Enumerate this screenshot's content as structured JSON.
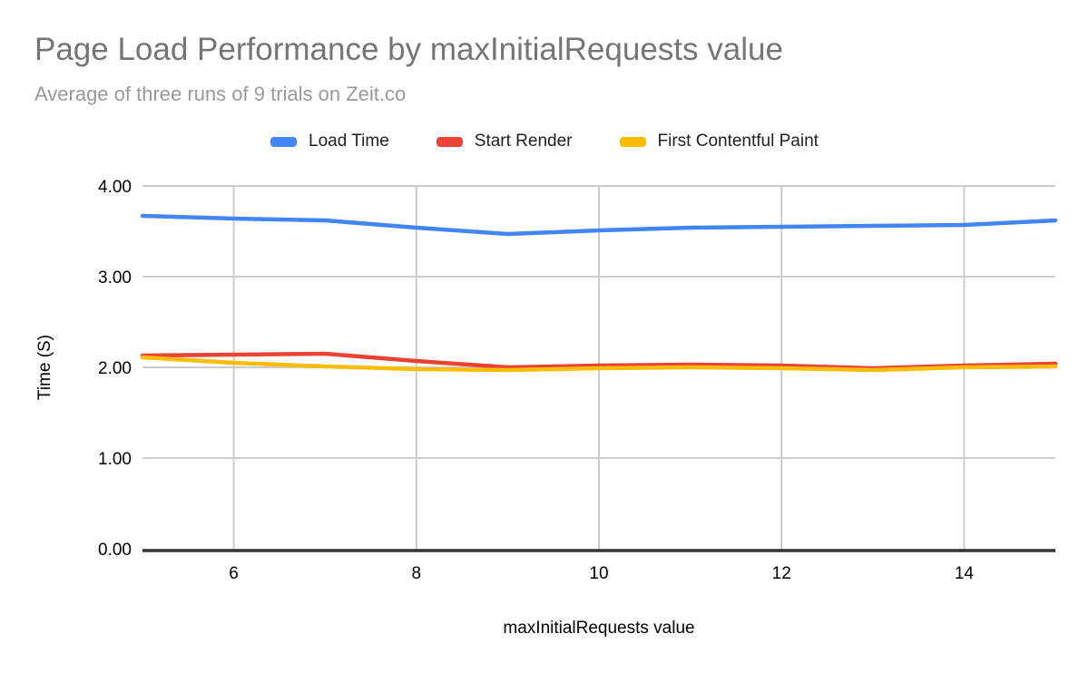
{
  "chart_data": {
    "type": "line",
    "title": "Page Load Performance by maxInitialRequests value",
    "subtitle": "Average of three runs of 9 trials on Zeit.co",
    "xlabel": "maxInitialRequests value",
    "ylabel": "Time (S)",
    "x": [
      5,
      6,
      7,
      8,
      9,
      10,
      11,
      12,
      13,
      14,
      15
    ],
    "series": [
      {
        "name": "Load Time",
        "color": "#4285F4",
        "values": [
          3.67,
          3.64,
          3.62,
          3.54,
          3.47,
          3.51,
          3.54,
          3.55,
          3.56,
          3.57,
          3.62
        ]
      },
      {
        "name": "Start Render",
        "color": "#EA4335",
        "values": [
          2.13,
          2.14,
          2.15,
          2.07,
          2.0,
          2.02,
          2.03,
          2.02,
          1.99,
          2.02,
          2.04
        ]
      },
      {
        "name": "First Contentful Paint",
        "color": "#FBBC04",
        "values": [
          2.11,
          2.05,
          2.01,
          1.98,
          1.97,
          1.99,
          2.0,
          1.99,
          1.97,
          2.0,
          2.01
        ]
      }
    ],
    "xlim": [
      5,
      15
    ],
    "ylim": [
      0,
      4
    ],
    "x_ticks": [
      {
        "value": 6,
        "label": "6"
      },
      {
        "value": 8,
        "label": "8"
      },
      {
        "value": 10,
        "label": "10"
      },
      {
        "value": 12,
        "label": "12"
      },
      {
        "value": 14,
        "label": "14"
      }
    ],
    "y_ticks": [
      {
        "value": 0,
        "label": "0.00"
      },
      {
        "value": 1,
        "label": "1.00"
      },
      {
        "value": 2,
        "label": "2.00"
      },
      {
        "value": 3,
        "label": "3.00"
      },
      {
        "value": 4,
        "label": "4.00"
      }
    ],
    "grid": true,
    "legend_position": "top",
    "colors": {
      "title": "#757575",
      "subtitle": "#999999",
      "grid": "#cccccc",
      "axis": "#333333",
      "tick_text": "#000000"
    }
  }
}
